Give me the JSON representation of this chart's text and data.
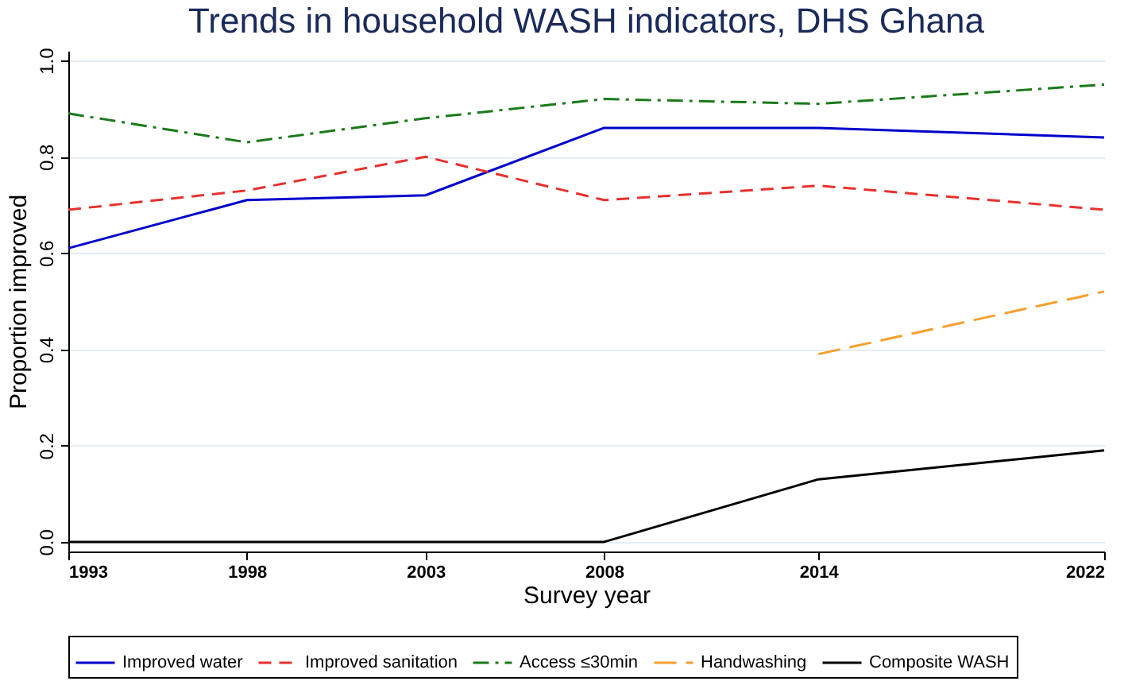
{
  "chart_data": {
    "type": "line",
    "title": "Trends in household WASH indicators, DHS Ghana",
    "xlabel": "Survey year",
    "ylabel": "Proportion improved",
    "x": [
      1993,
      1998,
      2003,
      2008,
      2014,
      2022
    ],
    "series": [
      {
        "name": "Improved water",
        "color": "#0000cc",
        "line_style": "solid",
        "values": [
          0.61,
          0.71,
          0.72,
          0.86,
          0.86,
          0.84
        ]
      },
      {
        "name": "Improved sanitation",
        "color": "#e8312e",
        "line_style": "dashed",
        "values": [
          0.69,
          0.73,
          0.8,
          0.71,
          0.74,
          0.69
        ]
      },
      {
        "name": "Access ≤30min",
        "color": "#1a7a1a",
        "line_style": "dashdot",
        "values": [
          0.89,
          0.83,
          0.88,
          0.92,
          0.91,
          0.95
        ]
      },
      {
        "name": "Handwashing",
        "color": "#f5a030",
        "line_style": "longdash",
        "values": [
          null,
          null,
          null,
          null,
          0.39,
          0.52
        ]
      },
      {
        "name": "Composite WASH",
        "color": "#000000",
        "line_style": "solid",
        "values": [
          0,
          0,
          0,
          0,
          0.13,
          0.19
        ]
      }
    ],
    "xlim": [
      1993,
      2022
    ],
    "xticks": [
      1993,
      1998,
      2003,
      2008,
      2014,
      2022
    ],
    "ylim": [
      -0.02,
      1.02
    ],
    "yticks": [
      {
        "value": 0,
        "label": "0.0"
      },
      0.2,
      0.4,
      0.6,
      0.8,
      {
        "value": 1,
        "label": "1.0"
      }
    ],
    "grid": "y",
    "legend": "bottom",
    "marker": "none"
  }
}
